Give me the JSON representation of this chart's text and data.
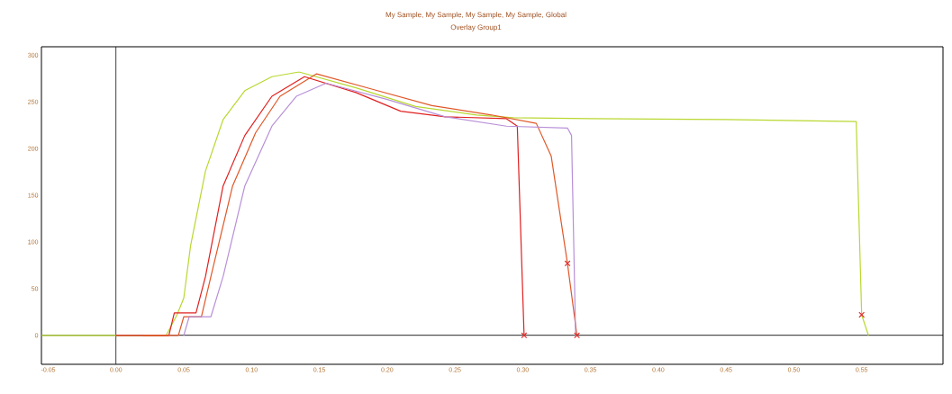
{
  "chart_data": {
    "type": "line",
    "title": "My Sample, My Sample, My Sample, My Sample, Global",
    "subtitle": "Overlay Group1",
    "xlim": [
      -0.055,
      0.61
    ],
    "ylim": [
      -31,
      309
    ],
    "xticks": [
      {
        "value": -0.05,
        "label": "-0.05"
      },
      {
        "value": 0,
        "label": "0.00"
      },
      {
        "value": 0.05,
        "label": "0.05"
      },
      {
        "value": 0.1,
        "label": "0.10"
      },
      {
        "value": 0.15,
        "label": "0.15"
      },
      {
        "value": 0.2,
        "label": "0.20"
      },
      {
        "value": 0.25,
        "label": "0.25"
      },
      {
        "value": 0.3,
        "label": "0.30"
      },
      {
        "value": 0.35,
        "label": "0.35"
      },
      {
        "value": 0.4,
        "label": "0.40"
      },
      {
        "value": 0.45,
        "label": "0.45"
      },
      {
        "value": 0.5,
        "label": "0.50"
      },
      {
        "value": 0.55,
        "label": "0.55"
      }
    ],
    "yticks": [
      0,
      50,
      100,
      150,
      200,
      250,
      300
    ],
    "marker": "none",
    "grid": false,
    "ref_lines": [
      {
        "axis": "x",
        "value": 0,
        "color": "#202020"
      },
      {
        "axis": "y",
        "value": 0,
        "color": "#000000"
      }
    ],
    "series": [
      {
        "color": "#b8d830",
        "x": [
          -0.055,
          0.037,
          0.045,
          0.05,
          0.055,
          0.066,
          0.079,
          0.095,
          0.115,
          0.135,
          0.177,
          0.221,
          0.266,
          0.293,
          0.35,
          0.45,
          0.546,
          0.55,
          0.555
        ],
        "values": [
          0,
          0,
          22,
          40,
          96,
          176,
          231,
          262,
          277,
          282,
          265,
          245,
          236,
          233,
          232,
          231,
          229,
          22,
          0
        ]
      },
      {
        "color": "#e02020",
        "x": [
          0,
          0.039,
          0.043,
          0.059,
          0.066,
          0.079,
          0.095,
          0.115,
          0.139,
          0.177,
          0.21,
          0.243,
          0.288,
          0.296,
          0.301
        ],
        "values": [
          0,
          0,
          24,
          24,
          63,
          160,
          214,
          256,
          277,
          260,
          240,
          234,
          232,
          224,
          0
        ]
      },
      {
        "color": "#e05828",
        "x": [
          0.02,
          0.046,
          0.05,
          0.063,
          0.07,
          0.086,
          0.103,
          0.121,
          0.148,
          0.188,
          0.233,
          0.277,
          0.31,
          0.321,
          0.333,
          0.34
        ],
        "values": [
          0,
          0,
          20,
          20,
          63,
          160,
          217,
          256,
          280,
          264,
          246,
          236,
          227,
          192,
          77,
          0
        ]
      },
      {
        "color": "#b890d8",
        "x": [
          0.05,
          0.054,
          0.07,
          0.079,
          0.095,
          0.115,
          0.133,
          0.155,
          0.199,
          0.243,
          0.288,
          0.333,
          0.336,
          0.339
        ],
        "values": [
          0,
          20,
          20,
          63,
          160,
          224,
          256,
          270,
          253,
          234,
          224,
          222,
          214,
          0
        ]
      },
      {
        "type": "scatter",
        "marker": "cross",
        "color": "#e03030",
        "x": [
          0.301,
          0.34,
          0.333,
          0.55
        ],
        "values": [
          0,
          0,
          77,
          22
        ]
      }
    ]
  }
}
